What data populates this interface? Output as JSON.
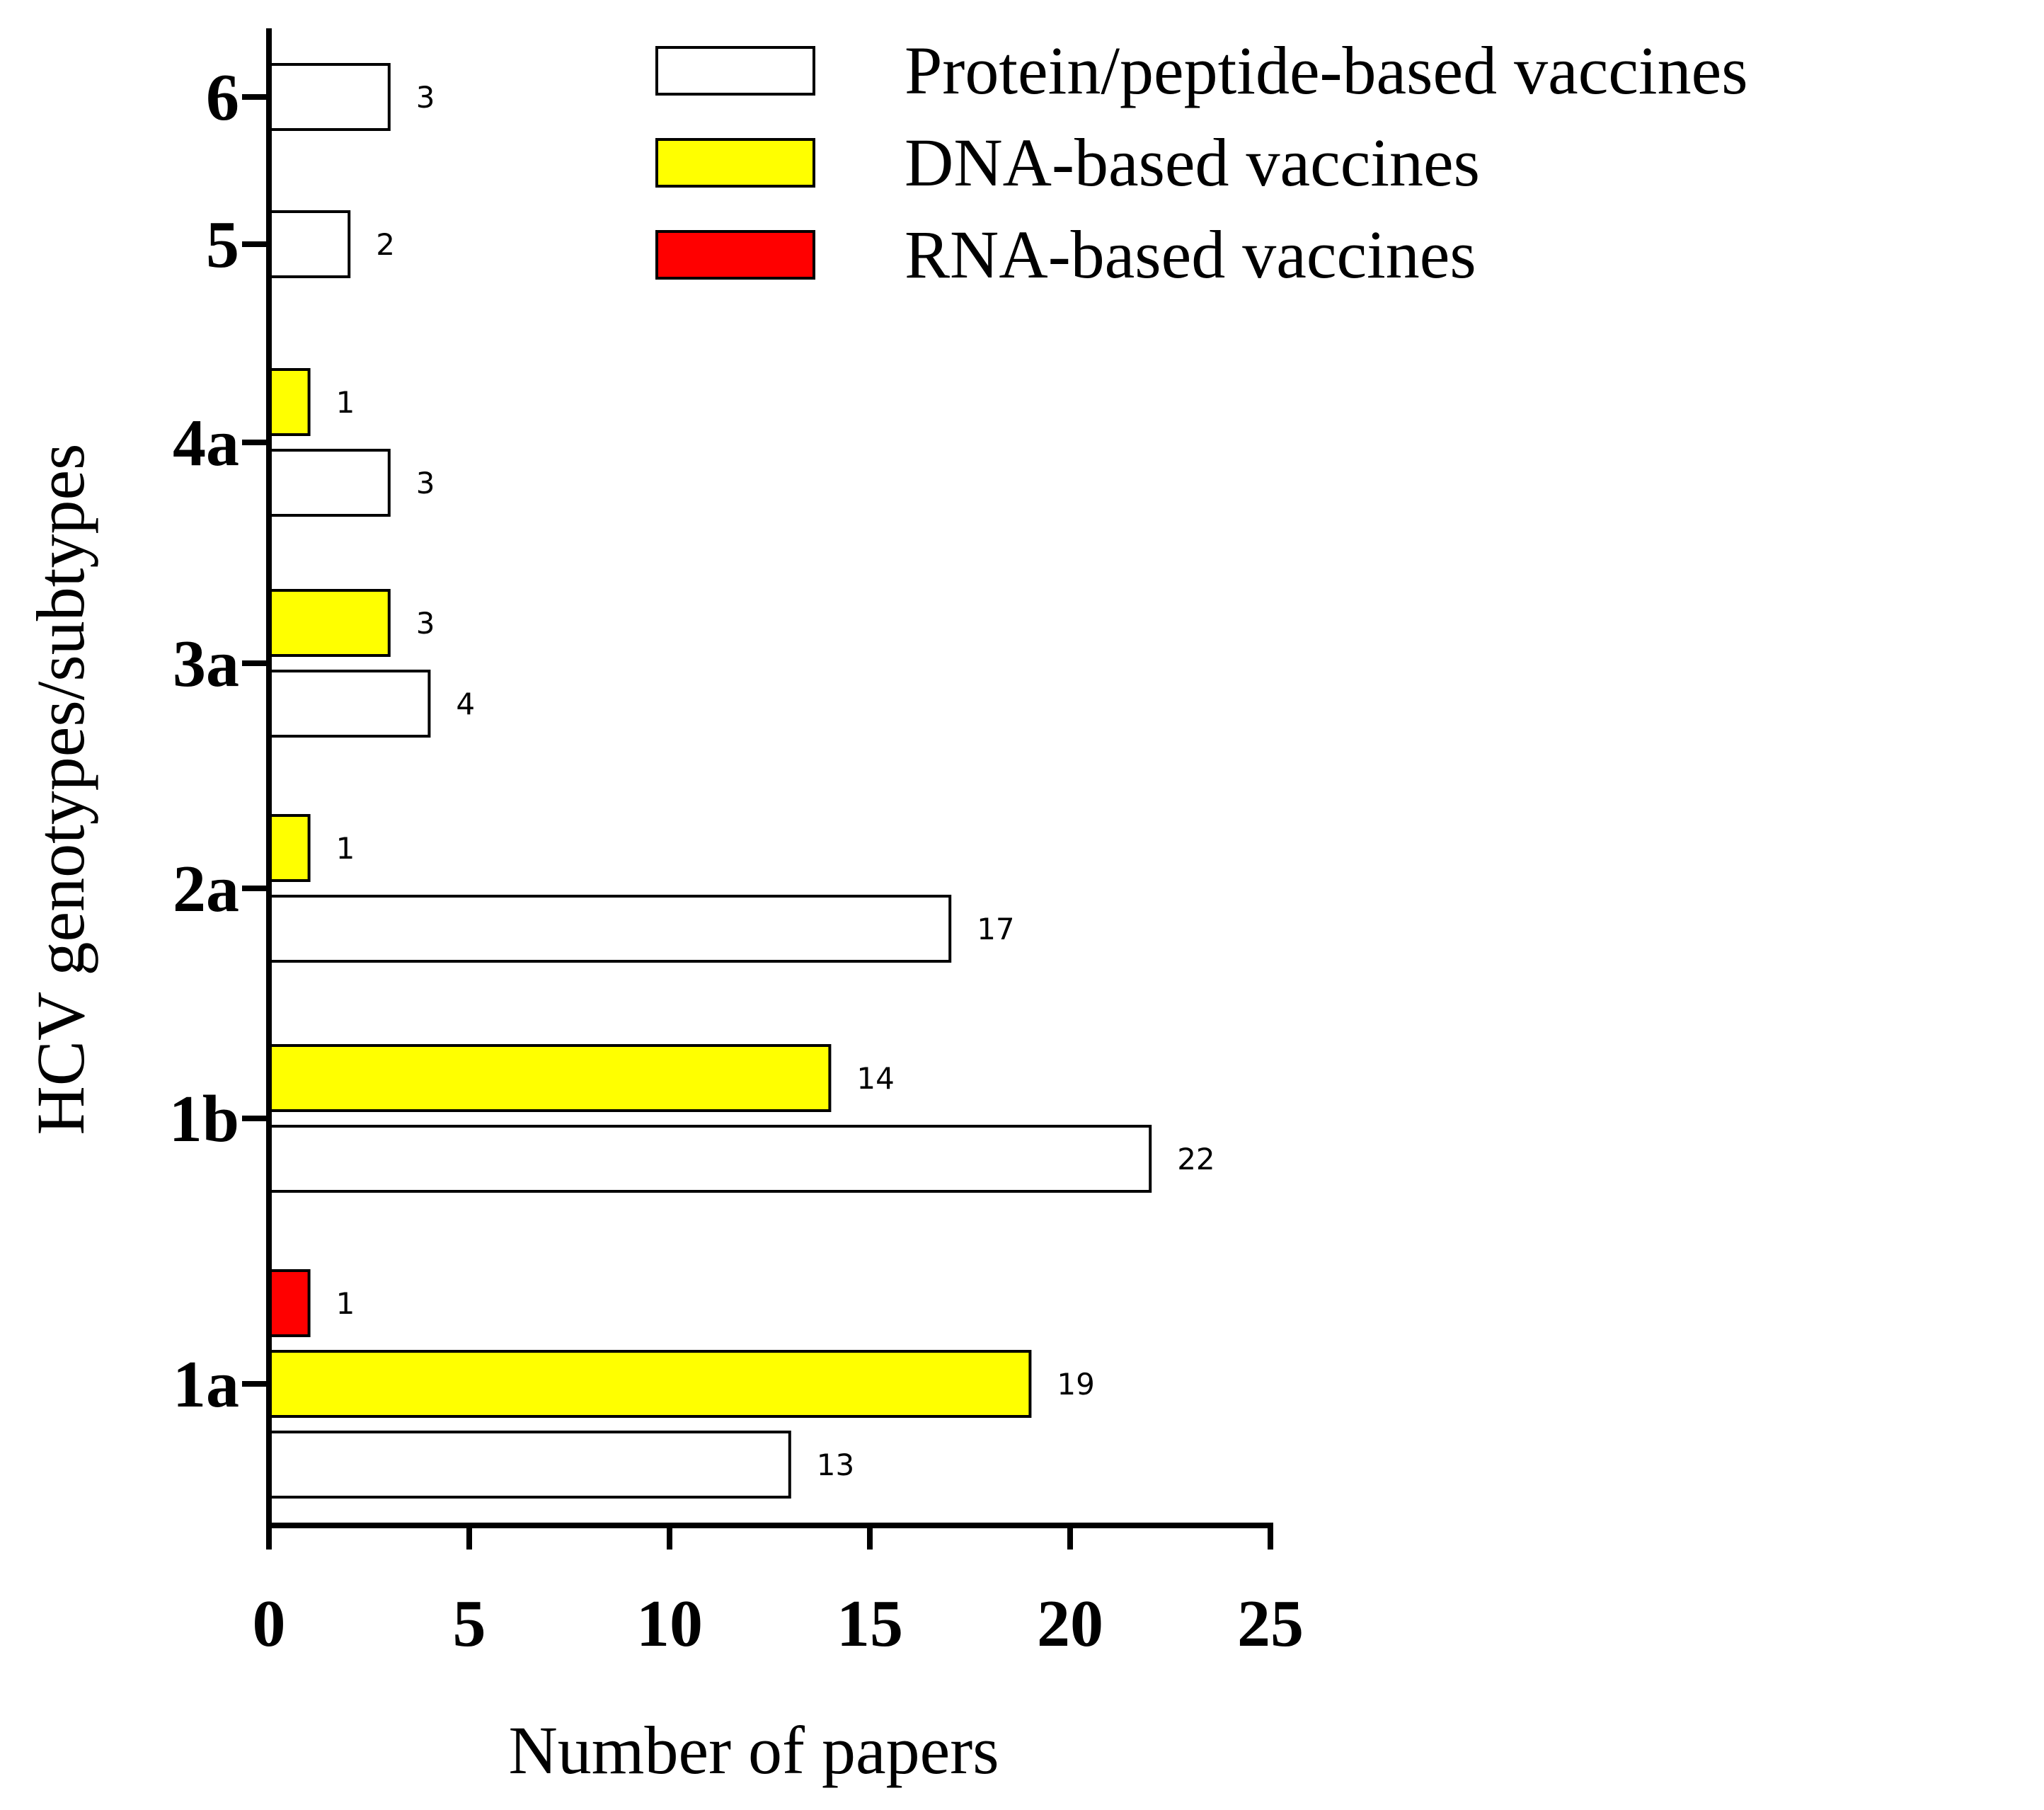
{
  "chart_data": {
    "type": "bar",
    "orientation": "horizontal",
    "xlabel": "Number of papers",
    "ylabel": "HCV genotypes/subtypes",
    "xlim": [
      0,
      25
    ],
    "xticks": [
      0,
      5,
      10,
      15,
      20,
      25
    ],
    "categories": [
      "1a",
      "1b",
      "2a",
      "3a",
      "4a",
      "5",
      "6"
    ],
    "series": [
      {
        "name": "Protein/peptide-based vaccines",
        "color": "#ffffff",
        "values": [
          13,
          22,
          17,
          4,
          3,
          2,
          3
        ]
      },
      {
        "name": "DNA-based vaccines",
        "color": "#ffff00",
        "values": [
          19,
          14,
          1,
          3,
          1,
          null,
          null
        ]
      },
      {
        "name": "RNA-based vaccines",
        "color": "#ff0000",
        "values": [
          1,
          null,
          null,
          null,
          null,
          null,
          null
        ]
      }
    ],
    "legend_position": "top-right",
    "grid": false
  }
}
